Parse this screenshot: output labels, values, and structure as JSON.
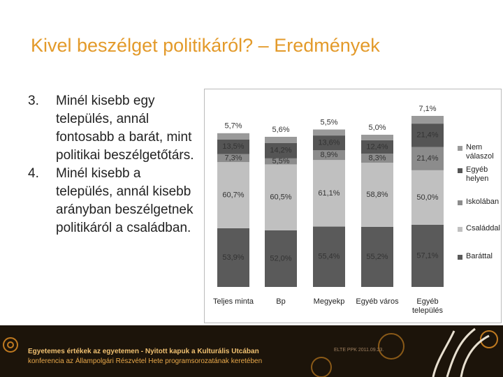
{
  "title": "Kivel beszélget politikáról? – Eredmények",
  "list": [
    {
      "number": "3.",
      "text": "Minél kisebb egy település, annál fontosabb a barát, mint politikai beszélgetőtárs."
    },
    {
      "number": "4.",
      "text": "Minél kisebb a település, annál kisebb arányban beszélgetnek politikáról a családban."
    }
  ],
  "footer": {
    "line1": "Egyetemes értékek az egyetemen - Nyitott kapuk a Kulturális Utcában",
    "line2": "konferencia az Állampolgári Részvétel Hete programsorozatának keretében",
    "date": "ELTE PPK 2011.09.23."
  },
  "chart_data": {
    "type": "stacked_bar",
    "categories": [
      "Teljes minta",
      "Bp",
      "Megyekp",
      "Egyéb város",
      "Egyéb település"
    ],
    "series": [
      {
        "name": "Baráttal",
        "color": "#5a5a5a",
        "values": [
          53.9,
          52.0,
          55.4,
          55.2,
          57.1
        ],
        "value_labels": [
          "53,9%",
          "52,0%",
          "55,4%",
          "55,2%",
          "57,1%"
        ]
      },
      {
        "name": "Családdal",
        "color": "#c0c0c0",
        "values": [
          60.7,
          60.5,
          61.1,
          58.8,
          50.0
        ],
        "value_labels": [
          "60,7%",
          "60,5%",
          "61,1%",
          "58,8%",
          "50,0%"
        ]
      },
      {
        "name": "Iskolában",
        "color": "#8c8c8c",
        "values": [
          7.3,
          5.5,
          8.9,
          8.3,
          21.4
        ],
        "value_labels": [
          "7,3%",
          "5,5%",
          "8,9%",
          "8,3%",
          "21,4%"
        ]
      },
      {
        "name": "Egyéb helyen",
        "color": "#555555",
        "values": [
          13.5,
          14.2,
          13.6,
          12.4,
          21.4
        ],
        "value_labels": [
          "13,5%",
          "14,2%",
          "13,6%",
          "12,4%",
          "21,4%"
        ]
      },
      {
        "name": "Nem válaszol",
        "color": "#9a9a9a",
        "values": [
          5.7,
          5.6,
          5.5,
          5.0,
          7.1
        ],
        "value_labels": [
          "5,7%",
          "5,6%",
          "5,5%",
          "5,0%",
          "7,1%"
        ]
      }
    ]
  }
}
